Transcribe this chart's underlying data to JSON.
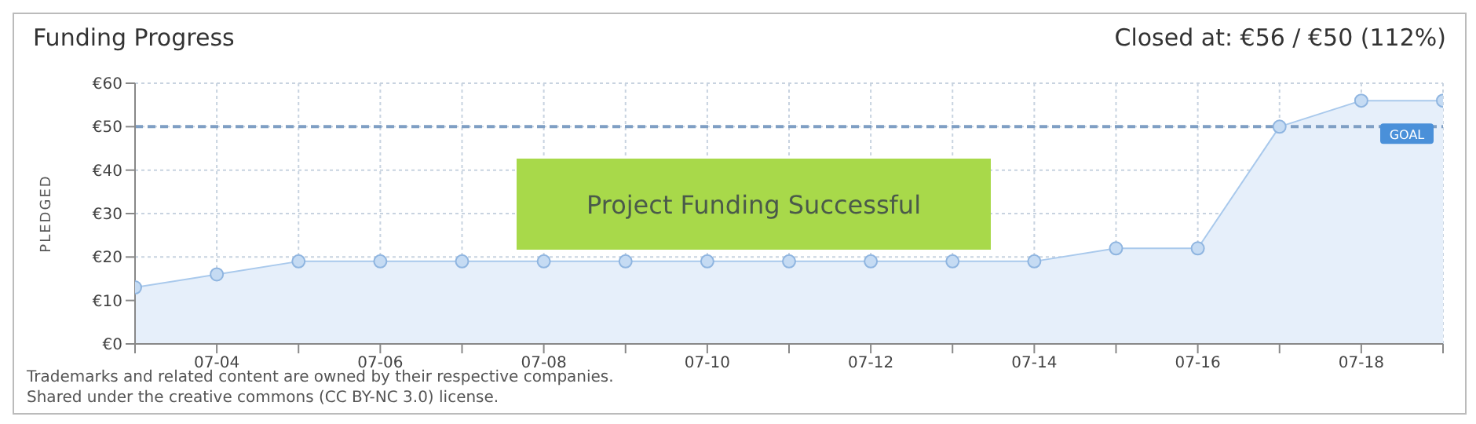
{
  "chart_data": {
    "type": "area",
    "title": "Funding Progress",
    "ylabel": "PLEDGED",
    "annotations": [
      "Closed at: €56 / €50 (112%)",
      "Project Funding Successful",
      "Trademarks and related content are owned by their respective companies.",
      "Shared under the creative commons (CC BY-NC 3.0) license."
    ],
    "categories": [
      null,
      "07-04",
      null,
      "07-06",
      null,
      "07-08",
      null,
      "07-10",
      null,
      "07-12",
      null,
      "07-14",
      null,
      "07-16",
      null,
      "07-18",
      null
    ],
    "series": [
      {
        "color": "#a9c9ec",
        "values": [
          13,
          16,
          19,
          19,
          19,
          19,
          19,
          19,
          19,
          19,
          19,
          19,
          22,
          22,
          50,
          56,
          56
        ]
      }
    ],
    "ylim": [
      0,
      60
    ],
    "yticks": [
      {
        "value": 0,
        "label": "€0"
      },
      {
        "value": 10,
        "label": "€10"
      },
      {
        "value": 20,
        "label": "€20"
      },
      {
        "value": 30,
        "label": "€30"
      },
      {
        "value": 40,
        "label": "€40"
      },
      {
        "value": 50,
        "label": "€50"
      },
      {
        "value": 60,
        "label": "€60"
      }
    ],
    "ref_lines": [
      {
        "axis": "y",
        "value": 50,
        "label": "GOAL",
        "color": "#7f9fc4",
        "line_style": "dashed"
      }
    ],
    "grid": true,
    "marker": "circle",
    "legend": false
  }
}
